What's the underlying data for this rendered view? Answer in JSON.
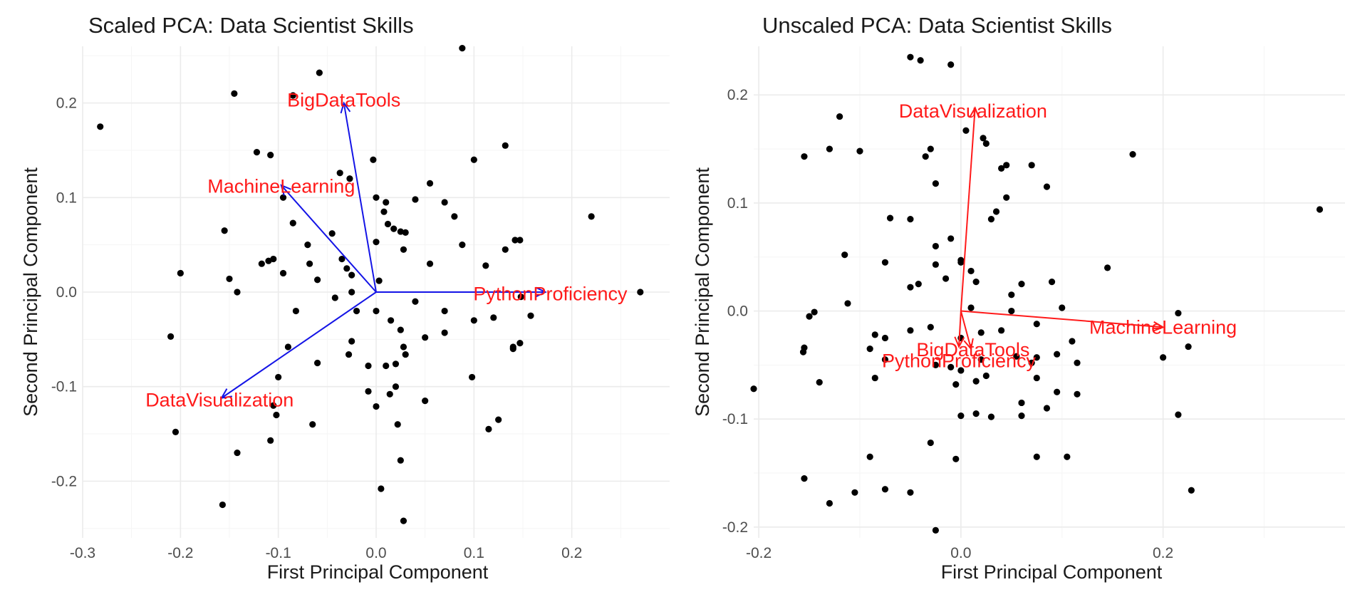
{
  "chart_data": [
    {
      "type": "scatter",
      "subtype": "biplot",
      "title": "Scaled PCA: Data Scientist Skills",
      "xlabel": "First Principal Component",
      "ylabel": "Second Principal Component",
      "xlim": [
        -0.3,
        0.3
      ],
      "ylim": [
        -0.26,
        0.26
      ],
      "xticks": [
        -0.3,
        -0.2,
        -0.1,
        0.0,
        0.1,
        0.2
      ],
      "xtick_labels": [
        "-0.3",
        "-0.2",
        "-0.1",
        "0.0",
        "0.1",
        "0.2"
      ],
      "yticks": [
        -0.2,
        -0.1,
        0.0,
        0.1,
        0.2
      ],
      "ytick_labels": [
        "-0.2",
        "-0.1",
        "0.0",
        "0.1",
        "0.2"
      ],
      "point_color": "#000000",
      "vector_color": "#1414e6",
      "label_color": "#ff1a1a",
      "points": [
        [
          -0.282,
          0.175
        ],
        [
          -0.145,
          0.21
        ],
        [
          -0.058,
          0.232
        ],
        [
          0.088,
          0.258
        ],
        [
          -0.085,
          0.208
        ],
        [
          -0.122,
          0.148
        ],
        [
          -0.108,
          0.145
        ],
        [
          -0.003,
          0.14
        ],
        [
          0.1,
          0.14
        ],
        [
          0.132,
          0.155
        ],
        [
          -0.037,
          0.126
        ],
        [
          -0.027,
          0.12
        ],
        [
          -0.095,
          0.1
        ],
        [
          0.0,
          0.1
        ],
        [
          0.01,
          0.095
        ],
        [
          0.04,
          0.098
        ],
        [
          0.055,
          0.115
        ],
        [
          0.07,
          0.095
        ],
        [
          0.08,
          0.08
        ],
        [
          0.22,
          0.08
        ],
        [
          -0.155,
          0.065
        ],
        [
          -0.085,
          0.073
        ],
        [
          0.008,
          0.085
        ],
        [
          0.012,
          0.072
        ],
        [
          0.018,
          0.067
        ],
        [
          0.025,
          0.064
        ],
        [
          0.03,
          0.063
        ],
        [
          -0.045,
          0.062
        ],
        [
          -0.07,
          0.05
        ],
        [
          0.0,
          0.053
        ],
        [
          0.028,
          0.045
        ],
        [
          0.088,
          0.05
        ],
        [
          0.132,
          0.045
        ],
        [
          0.142,
          0.055
        ],
        [
          0.147,
          0.055
        ],
        [
          -0.117,
          0.03
        ],
        [
          -0.11,
          0.033
        ],
        [
          -0.105,
          0.035
        ],
        [
          -0.068,
          0.03
        ],
        [
          -0.035,
          0.035
        ],
        [
          -0.03,
          0.025
        ],
        [
          -0.2,
          0.02
        ],
        [
          -0.15,
          0.014
        ],
        [
          -0.095,
          0.02
        ],
        [
          -0.025,
          0.018
        ],
        [
          0.055,
          0.03
        ],
        [
          0.112,
          0.028
        ],
        [
          -0.142,
          0.0
        ],
        [
          -0.06,
          0.013
        ],
        [
          -0.042,
          -0.006
        ],
        [
          -0.025,
          0.0
        ],
        [
          0.003,
          0.012
        ],
        [
          0.04,
          -0.01
        ],
        [
          0.1,
          -0.03
        ],
        [
          0.12,
          -0.027
        ],
        [
          0.148,
          -0.005
        ],
        [
          0.158,
          -0.025
        ],
        [
          -0.082,
          -0.02
        ],
        [
          -0.02,
          -0.02
        ],
        [
          0.0,
          -0.02
        ],
        [
          0.015,
          -0.03
        ],
        [
          0.025,
          -0.04
        ],
        [
          0.07,
          -0.02
        ],
        [
          0.07,
          -0.043
        ],
        [
          -0.09,
          -0.058
        ],
        [
          -0.025,
          -0.052
        ],
        [
          -0.028,
          -0.066
        ],
        [
          0.028,
          -0.058
        ],
        [
          0.03,
          -0.066
        ],
        [
          0.05,
          -0.048
        ],
        [
          0.14,
          -0.058
        ],
        [
          0.14,
          -0.06
        ],
        [
          0.147,
          -0.054
        ],
        [
          -0.21,
          -0.047
        ],
        [
          -0.06,
          -0.075
        ],
        [
          -0.008,
          -0.078
        ],
        [
          0.01,
          -0.078
        ],
        [
          0.02,
          -0.076
        ],
        [
          -0.1,
          -0.09
        ],
        [
          0.098,
          -0.09
        ],
        [
          -0.008,
          -0.105
        ],
        [
          0.014,
          -0.108
        ],
        [
          0.02,
          -0.1
        ],
        [
          -0.105,
          -0.12
        ],
        [
          -0.102,
          -0.13
        ],
        [
          0.0,
          -0.121
        ],
        [
          0.05,
          -0.115
        ],
        [
          -0.065,
          -0.14
        ],
        [
          0.022,
          -0.14
        ],
        [
          0.115,
          -0.145
        ],
        [
          0.125,
          -0.135
        ],
        [
          -0.205,
          -0.148
        ],
        [
          -0.108,
          -0.157
        ],
        [
          -0.142,
          -0.17
        ],
        [
          0.025,
          -0.178
        ],
        [
          0.005,
          -0.208
        ],
        [
          -0.157,
          -0.225
        ],
        [
          0.028,
          -0.242
        ],
        [
          0.27,
          0.0
        ]
      ],
      "vectors": [
        {
          "name": "BigDataTools",
          "x": -0.033,
          "y": 0.2
        },
        {
          "name": "MachineLearning",
          "x": -0.097,
          "y": 0.113
        },
        {
          "name": "PythonProficiency",
          "x": 0.173,
          "y": 0.0
        },
        {
          "name": "DataVisualization",
          "x": -0.158,
          "y": -0.112
        }
      ],
      "labels": [
        {
          "text": "BigDataTools",
          "x": -0.033,
          "y": 0.203
        },
        {
          "text": "MachineLearning",
          "x": -0.097,
          "y": 0.112
        },
        {
          "text": "PythonProficiency",
          "x": 0.178,
          "y": -0.002
        },
        {
          "text": "DataVisualization",
          "x": -0.16,
          "y": -0.114
        }
      ]
    },
    {
      "type": "scatter",
      "subtype": "biplot",
      "title": "Unscaled PCA: Data Scientist Skills",
      "xlabel": "First Principal Component",
      "ylabel": "Second Principal Component",
      "xlim": [
        -0.205,
        0.38
      ],
      "ylim": [
        -0.21,
        0.245
      ],
      "xticks": [
        -0.2,
        0.0,
        0.2
      ],
      "xtick_labels": [
        "-0.2",
        "0.0",
        "0.2"
      ],
      "yticks": [
        -0.2,
        -0.1,
        0.0,
        0.1,
        0.2
      ],
      "ytick_labels": [
        "-0.2",
        "-0.1",
        "0.0",
        "0.1",
        "0.2"
      ],
      "point_color": "#000000",
      "vector_color": "#ff1a1a",
      "label_color": "#ff1a1a",
      "points": [
        [
          -0.05,
          0.235
        ],
        [
          -0.04,
          0.232
        ],
        [
          -0.01,
          0.228
        ],
        [
          -0.12,
          0.18
        ],
        [
          -0.155,
          0.143
        ],
        [
          -0.13,
          0.15
        ],
        [
          -0.1,
          0.148
        ],
        [
          -0.035,
          0.143
        ],
        [
          -0.03,
          0.15
        ],
        [
          0.022,
          0.16
        ],
        [
          0.025,
          0.155
        ],
        [
          0.005,
          0.167
        ],
        [
          0.04,
          0.132
        ],
        [
          0.045,
          0.135
        ],
        [
          0.07,
          0.135
        ],
        [
          0.17,
          0.145
        ],
        [
          0.085,
          0.115
        ],
        [
          -0.025,
          0.118
        ],
        [
          0.045,
          0.105
        ],
        [
          0.035,
          0.092
        ],
        [
          0.03,
          0.085
        ],
        [
          -0.07,
          0.086
        ],
        [
          -0.05,
          0.085
        ],
        [
          -0.115,
          0.052
        ],
        [
          -0.075,
          0.045
        ],
        [
          -0.025,
          0.06
        ],
        [
          -0.01,
          0.067
        ],
        [
          0.0,
          0.047
        ],
        [
          0.0,
          0.045
        ],
        [
          -0.025,
          0.043
        ],
        [
          0.01,
          0.037
        ],
        [
          0.145,
          0.04
        ],
        [
          -0.015,
          0.03
        ],
        [
          -0.05,
          0.022
        ],
        [
          -0.042,
          0.025
        ],
        [
          0.015,
          0.027
        ],
        [
          0.06,
          0.025
        ],
        [
          0.09,
          0.027
        ],
        [
          0.05,
          0.015
        ],
        [
          -0.112,
          0.007
        ],
        [
          -0.145,
          -0.001
        ],
        [
          -0.15,
          -0.005
        ],
        [
          0.01,
          0.003
        ],
        [
          0.05,
          0.0
        ],
        [
          0.1,
          0.003
        ],
        [
          0.04,
          -0.018
        ],
        [
          0.075,
          -0.012
        ],
        [
          0.11,
          -0.028
        ],
        [
          0.215,
          -0.002
        ],
        [
          -0.085,
          -0.022
        ],
        [
          -0.075,
          -0.025
        ],
        [
          -0.05,
          -0.018
        ],
        [
          -0.03,
          -0.015
        ],
        [
          0.0,
          -0.025
        ],
        [
          0.02,
          -0.02
        ],
        [
          -0.155,
          -0.034
        ],
        [
          -0.156,
          -0.038
        ],
        [
          0.02,
          -0.045
        ],
        [
          0.055,
          -0.042
        ],
        [
          0.07,
          -0.048
        ],
        [
          0.075,
          -0.043
        ],
        [
          0.095,
          -0.04
        ],
        [
          0.115,
          -0.048
        ],
        [
          0.225,
          -0.033
        ],
        [
          0.2,
          -0.043
        ],
        [
          -0.14,
          -0.066
        ],
        [
          -0.085,
          -0.062
        ],
        [
          -0.09,
          -0.035
        ],
        [
          -0.075,
          -0.045
        ],
        [
          -0.025,
          -0.05
        ],
        [
          -0.01,
          -0.052
        ],
        [
          -0.005,
          -0.068
        ],
        [
          0.0,
          -0.055
        ],
        [
          0.015,
          -0.065
        ],
        [
          0.025,
          -0.06
        ],
        [
          0.075,
          -0.062
        ],
        [
          0.095,
          -0.075
        ],
        [
          0.115,
          -0.077
        ],
        [
          -0.205,
          -0.072
        ],
        [
          0.06,
          -0.085
        ],
        [
          0.085,
          -0.09
        ],
        [
          0.0,
          -0.097
        ],
        [
          0.015,
          -0.095
        ],
        [
          0.03,
          -0.098
        ],
        [
          0.06,
          -0.097
        ],
        [
          0.215,
          -0.096
        ],
        [
          -0.03,
          -0.122
        ],
        [
          -0.09,
          -0.135
        ],
        [
          -0.005,
          -0.137
        ],
        [
          0.075,
          -0.135
        ],
        [
          0.105,
          -0.135
        ],
        [
          -0.155,
          -0.155
        ],
        [
          -0.105,
          -0.168
        ],
        [
          -0.075,
          -0.165
        ],
        [
          -0.05,
          -0.168
        ],
        [
          -0.13,
          -0.178
        ],
        [
          -0.025,
          -0.203
        ],
        [
          0.228,
          -0.166
        ],
        [
          0.355,
          0.094
        ]
      ],
      "vectors": [
        {
          "name": "DataVisualization",
          "x": 0.014,
          "y": 0.188
        },
        {
          "name": "MachineLearning",
          "x": 0.2,
          "y": -0.015
        },
        {
          "name": "BigDataTools",
          "x": 0.01,
          "y": -0.035
        },
        {
          "name": "PythonProficiency",
          "x": -0.002,
          "y": -0.033
        }
      ],
      "labels": [
        {
          "text": "DataVisualization",
          "x": 0.012,
          "y": 0.185
        },
        {
          "text": "MachineLearning",
          "x": 0.2,
          "y": -0.015
        },
        {
          "text": "BigDataTools",
          "x": 0.012,
          "y": -0.036
        },
        {
          "text": "PythonProficiency",
          "x": -0.002,
          "y": -0.046
        }
      ]
    }
  ]
}
